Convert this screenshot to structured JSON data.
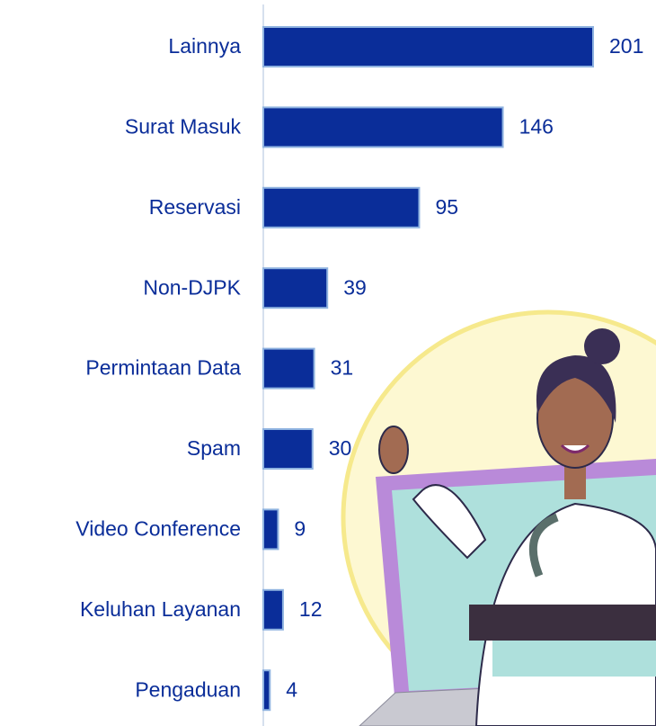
{
  "chart_data": {
    "type": "bar",
    "orientation": "horizontal",
    "categories": [
      "Lainnya",
      "Surat Masuk",
      "Reservasi",
      "Non-DJPK",
      "Permintaan Data",
      "Spam",
      "Video Conference",
      "Keluhan Layanan",
      "Pengaduan"
    ],
    "values": [
      201,
      146,
      95,
      39,
      31,
      30,
      9,
      12,
      4
    ],
    "color": "#0a2d99"
  }
}
